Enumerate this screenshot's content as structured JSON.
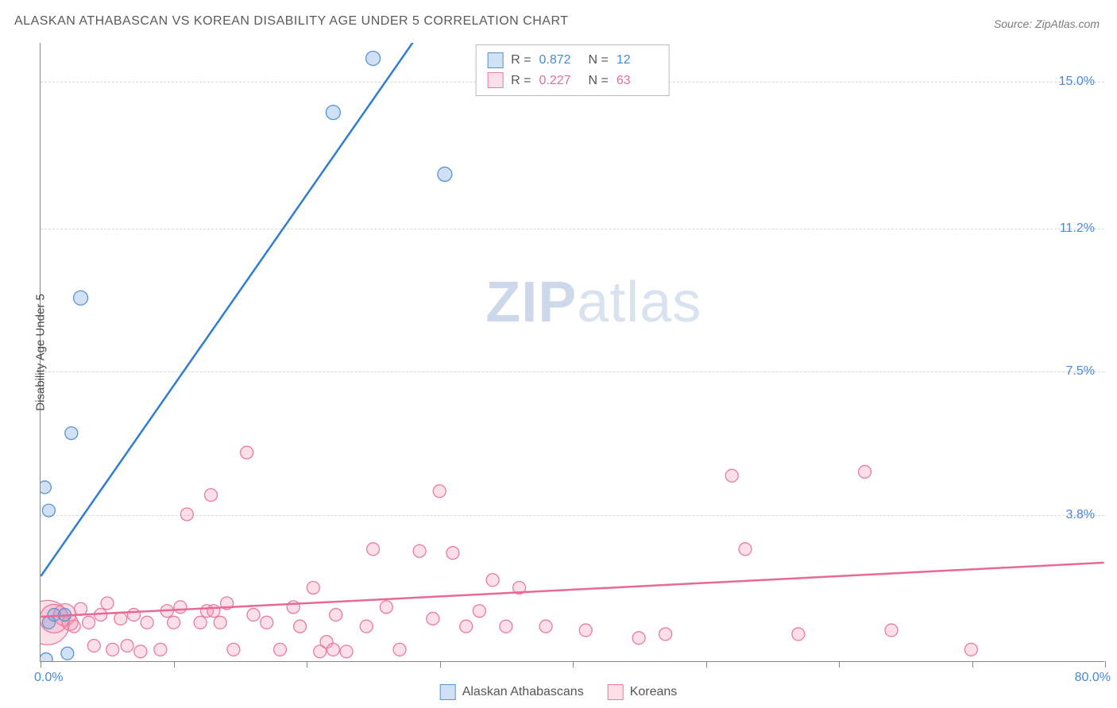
{
  "title": "ALASKAN ATHABASCAN VS KOREAN DISABILITY AGE UNDER 5 CORRELATION CHART",
  "source": "Source: ZipAtlas.com",
  "y_axis_label": "Disability Age Under 5",
  "watermark_zip": "ZIP",
  "watermark_atlas": "atlas",
  "colors": {
    "blue_fill": "rgba(120,170,225,0.35)",
    "blue_stroke": "#5a93d1",
    "blue_line": "#2f7cd6",
    "blue_text": "#4a87d8",
    "pink_fill": "rgba(245,150,175,0.30)",
    "pink_stroke": "#e87ba0",
    "pink_line": "#e86a94",
    "pink_text": "#e86a94",
    "grid": "#d8d8d8",
    "axis": "#888888",
    "text_gray": "#5a5a5a"
  },
  "xlim": [
    0,
    80
  ],
  "ylim": [
    0,
    16
  ],
  "y_ticks": [
    {
      "v": 3.8,
      "label": "3.8%"
    },
    {
      "v": 7.5,
      "label": "7.5%"
    },
    {
      "v": 11.2,
      "label": "11.2%"
    },
    {
      "v": 15.0,
      "label": "15.0%"
    }
  ],
  "x_ticks_major": [
    0,
    10,
    20,
    30,
    40,
    50,
    60,
    70,
    80
  ],
  "x_min_label": "0.0%",
  "x_max_label": "80.0%",
  "legend_top": {
    "rows": [
      {
        "swatch": "blue",
        "r_label": "R =",
        "r": "0.872",
        "n_label": "N =",
        "n": "12"
      },
      {
        "swatch": "pink",
        "r_label": "R =",
        "r": "0.227",
        "n_label": "N =",
        "n": "63"
      }
    ]
  },
  "bottom_legend": [
    {
      "swatch": "blue",
      "label": "Alaskan Athabascans"
    },
    {
      "swatch": "pink",
      "label": "Koreans"
    }
  ],
  "series_blue": {
    "trend": {
      "x1": 0,
      "y1": 2.2,
      "x2": 30,
      "y2": 17
    },
    "points": [
      {
        "x": 0.4,
        "y": 0.05,
        "r": 8
      },
      {
        "x": 0.6,
        "y": 1.0,
        "r": 8
      },
      {
        "x": 1.0,
        "y": 1.2,
        "r": 8
      },
      {
        "x": 0.6,
        "y": 3.9,
        "r": 8
      },
      {
        "x": 0.3,
        "y": 4.5,
        "r": 8
      },
      {
        "x": 2.3,
        "y": 5.9,
        "r": 8
      },
      {
        "x": 2.0,
        "y": 0.2,
        "r": 8
      },
      {
        "x": 1.8,
        "y": 1.2,
        "r": 8
      },
      {
        "x": 3.0,
        "y": 9.4,
        "r": 9
      },
      {
        "x": 22.0,
        "y": 14.2,
        "r": 9
      },
      {
        "x": 25.0,
        "y": 15.6,
        "r": 9
      },
      {
        "x": 30.4,
        "y": 12.6,
        "r": 9
      }
    ]
  },
  "series_pink": {
    "trend": {
      "x1": 0,
      "y1": 1.15,
      "x2": 80,
      "y2": 2.55
    },
    "points": [
      {
        "x": 0.5,
        "y": 1.0,
        "r": 28
      },
      {
        "x": 1.0,
        "y": 1.1,
        "r": 18
      },
      {
        "x": 1.8,
        "y": 1.2,
        "r": 14
      },
      {
        "x": 2.2,
        "y": 1.0,
        "r": 10
      },
      {
        "x": 2.5,
        "y": 0.9,
        "r": 8
      },
      {
        "x": 3.0,
        "y": 1.35,
        "r": 8
      },
      {
        "x": 3.6,
        "y": 1.0,
        "r": 8
      },
      {
        "x": 4.0,
        "y": 0.4,
        "r": 8
      },
      {
        "x": 4.5,
        "y": 1.2,
        "r": 8
      },
      {
        "x": 5.0,
        "y": 1.5,
        "r": 8
      },
      {
        "x": 5.4,
        "y": 0.3,
        "r": 8
      },
      {
        "x": 6.0,
        "y": 1.1,
        "r": 8
      },
      {
        "x": 6.5,
        "y": 0.4,
        "r": 8
      },
      {
        "x": 7.0,
        "y": 1.2,
        "r": 8
      },
      {
        "x": 7.5,
        "y": 0.25,
        "r": 8
      },
      {
        "x": 8.0,
        "y": 1.0,
        "r": 8
      },
      {
        "x": 9.0,
        "y": 0.3,
        "r": 8
      },
      {
        "x": 9.5,
        "y": 1.3,
        "r": 8
      },
      {
        "x": 10.0,
        "y": 1.0,
        "r": 8
      },
      {
        "x": 10.5,
        "y": 1.4,
        "r": 8
      },
      {
        "x": 11.0,
        "y": 3.8,
        "r": 8
      },
      {
        "x": 12.0,
        "y": 1.0,
        "r": 8
      },
      {
        "x": 12.5,
        "y": 1.3,
        "r": 8
      },
      {
        "x": 12.8,
        "y": 4.3,
        "r": 8
      },
      {
        "x": 13.0,
        "y": 1.3,
        "r": 8
      },
      {
        "x": 13.5,
        "y": 1.0,
        "r": 8
      },
      {
        "x": 14.0,
        "y": 1.5,
        "r": 8
      },
      {
        "x": 14.5,
        "y": 0.3,
        "r": 8
      },
      {
        "x": 15.5,
        "y": 5.4,
        "r": 8
      },
      {
        "x": 16.0,
        "y": 1.2,
        "r": 8
      },
      {
        "x": 17.0,
        "y": 1.0,
        "r": 8
      },
      {
        "x": 18.0,
        "y": 0.3,
        "r": 8
      },
      {
        "x": 19.0,
        "y": 1.4,
        "r": 8
      },
      {
        "x": 19.5,
        "y": 0.9,
        "r": 8
      },
      {
        "x": 20.5,
        "y": 1.9,
        "r": 8
      },
      {
        "x": 21.0,
        "y": 0.25,
        "r": 8
      },
      {
        "x": 21.5,
        "y": 0.5,
        "r": 8
      },
      {
        "x": 22.0,
        "y": 0.3,
        "r": 8
      },
      {
        "x": 22.2,
        "y": 1.2,
        "r": 8
      },
      {
        "x": 23.0,
        "y": 0.25,
        "r": 8
      },
      {
        "x": 24.5,
        "y": 0.9,
        "r": 8
      },
      {
        "x": 25.0,
        "y": 2.9,
        "r": 8
      },
      {
        "x": 26.0,
        "y": 1.4,
        "r": 8
      },
      {
        "x": 27.0,
        "y": 0.3,
        "r": 8
      },
      {
        "x": 28.5,
        "y": 2.85,
        "r": 8
      },
      {
        "x": 29.5,
        "y": 1.1,
        "r": 8
      },
      {
        "x": 30.0,
        "y": 4.4,
        "r": 8
      },
      {
        "x": 31.0,
        "y": 2.8,
        "r": 8
      },
      {
        "x": 32.0,
        "y": 0.9,
        "r": 8
      },
      {
        "x": 33.0,
        "y": 1.3,
        "r": 8
      },
      {
        "x": 34.0,
        "y": 2.1,
        "r": 8
      },
      {
        "x": 35.0,
        "y": 0.9,
        "r": 8
      },
      {
        "x": 36.0,
        "y": 1.9,
        "r": 8
      },
      {
        "x": 38.0,
        "y": 0.9,
        "r": 8
      },
      {
        "x": 41.0,
        "y": 0.8,
        "r": 8
      },
      {
        "x": 45.0,
        "y": 0.6,
        "r": 8
      },
      {
        "x": 47.0,
        "y": 0.7,
        "r": 8
      },
      {
        "x": 52.0,
        "y": 4.8,
        "r": 8
      },
      {
        "x": 53.0,
        "y": 2.9,
        "r": 8
      },
      {
        "x": 57.0,
        "y": 0.7,
        "r": 8
      },
      {
        "x": 62.0,
        "y": 4.9,
        "r": 8
      },
      {
        "x": 64.0,
        "y": 0.8,
        "r": 8
      },
      {
        "x": 70.0,
        "y": 0.3,
        "r": 8
      }
    ]
  }
}
